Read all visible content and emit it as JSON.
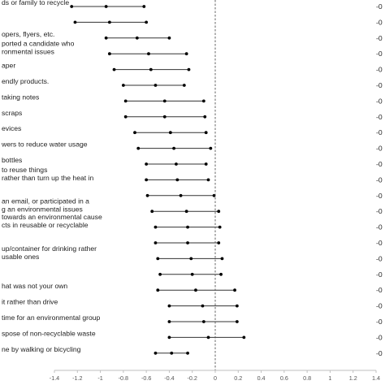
{
  "chart_data": {
    "type": "scatter",
    "orientation": "horizontal-interval",
    "title": "",
    "xlabel": "",
    "ylabel": "",
    "xlim": [
      -1.4,
      1.4
    ],
    "x_ticks": [
      "-1.4",
      "-1.2",
      "-1",
      "-0.8",
      "-0.6",
      "-0.4",
      "-0.2",
      "0",
      "0.2",
      "0.4",
      "0.6",
      "0.8",
      "1",
      "1.2",
      "1.4"
    ],
    "reference_line": {
      "x": 0,
      "style": "dashed"
    },
    "grid": false,
    "legend": "none",
    "marker_color": "#000000",
    "line_color": "#333333",
    "rows": [
      {
        "label_lines": [
          "ds or family to recycle"
        ],
        "right_label": "-0",
        "low": -1.25,
        "estimate": -0.95,
        "high": -0.62
      },
      {
        "label_lines": [
          ""
        ],
        "right_label": "-0",
        "low": -1.22,
        "estimate": -0.92,
        "high": -0.6
      },
      {
        "label_lines": [
          "opers, flyers, etc."
        ],
        "right_label": "-0",
        "low": -0.95,
        "estimate": -0.68,
        "high": -0.4
      },
      {
        "label_lines": [
          "ported a candidate who",
          "ronmental issues"
        ],
        "right_label": "-0",
        "low": -0.92,
        "estimate": -0.58,
        "high": -0.25
      },
      {
        "label_lines": [
          "aper"
        ],
        "right_label": "-0",
        "low": -0.88,
        "estimate": -0.56,
        "high": -0.23
      },
      {
        "label_lines": [
          "endly products."
        ],
        "right_label": "-0",
        "low": -0.8,
        "estimate": -0.52,
        "high": -0.27
      },
      {
        "label_lines": [
          "taking notes"
        ],
        "right_label": "-0",
        "low": -0.78,
        "estimate": -0.44,
        "high": -0.1
      },
      {
        "label_lines": [
          "scraps"
        ],
        "right_label": "-0",
        "low": -0.78,
        "estimate": -0.44,
        "high": -0.09
      },
      {
        "label_lines": [
          "evices"
        ],
        "right_label": "-0",
        "low": -0.7,
        "estimate": -0.39,
        "high": -0.08
      },
      {
        "label_lines": [
          "wers to reduce water usage"
        ],
        "right_label": "-0",
        "low": -0.67,
        "estimate": -0.36,
        "high": -0.04
      },
      {
        "label_lines": [
          "bottles"
        ],
        "right_label": "-0",
        "low": -0.6,
        "estimate": -0.34,
        "high": -0.08
      },
      {
        "label_lines": [
          "to reuse things",
          "rather than turn up the heat in"
        ],
        "right_label": "-0",
        "low": -0.6,
        "estimate": -0.33,
        "high": -0.06
      },
      {
        "label_lines": [
          ""
        ],
        "right_label": "-0",
        "low": -0.59,
        "estimate": -0.3,
        "high": -0.01
      },
      {
        "label_lines": [
          "an email, or participated in a",
          "g an environmental issues"
        ],
        "right_label": "-0",
        "low": -0.55,
        "estimate": -0.25,
        "high": 0.03
      },
      {
        "label_lines": [
          "towards an environmental cause",
          "cts in reusable or recyclable"
        ],
        "right_label": "-0",
        "low": -0.52,
        "estimate": -0.24,
        "high": 0.04
      },
      {
        "label_lines": [
          ""
        ],
        "right_label": "-0",
        "low": -0.52,
        "estimate": -0.24,
        "high": 0.03
      },
      {
        "label_lines": [
          "up/container for drinking rather",
          "usable ones"
        ],
        "right_label": "-0",
        "low": -0.5,
        "estimate": -0.21,
        "high": 0.06
      },
      {
        "label_lines": [
          ""
        ],
        "right_label": "-0",
        "low": -0.48,
        "estimate": -0.2,
        "high": 0.05
      },
      {
        "label_lines": [
          "hat was not your own"
        ],
        "right_label": "-0",
        "low": -0.5,
        "estimate": -0.17,
        "high": 0.17
      },
      {
        "label_lines": [
          "it rather than drive"
        ],
        "right_label": "-0",
        "low": -0.4,
        "estimate": -0.11,
        "high": 0.19
      },
      {
        "label_lines": [
          " time for an environmental group"
        ],
        "right_label": "-0",
        "low": -0.4,
        "estimate": -0.1,
        "high": 0.19
      },
      {
        "label_lines": [
          "spose of non-recyclable waste"
        ],
        "right_label": "-0",
        "low": -0.4,
        "estimate": -0.06,
        "high": 0.25
      },
      {
        "label_lines": [
          "ne by walking or bicycling"
        ],
        "right_label": "-0",
        "low": -0.52,
        "estimate": -0.38,
        "high": -0.24
      }
    ]
  }
}
